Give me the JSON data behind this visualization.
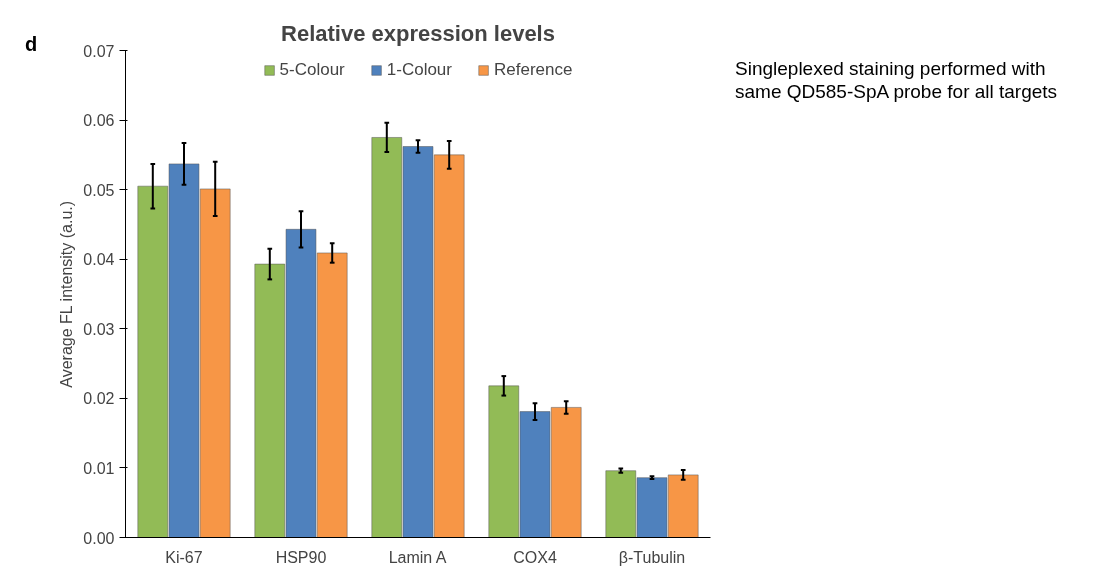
{
  "chart_data": {
    "type": "bar",
    "title": "Relative expression levels",
    "ylabel": "Average FL intensity (a.u.)",
    "categories": [
      "Ki-67",
      "HSP90",
      "Lamin A",
      "COX4",
      "β-Tubulin"
    ],
    "series": [
      {
        "name": "5-Colour",
        "color": "#92bb56",
        "values": [
          0.0505,
          0.0393,
          0.0575,
          0.0218,
          0.0096
        ],
        "errors": [
          0.0032,
          0.0022,
          0.0021,
          0.0014,
          0.0003
        ]
      },
      {
        "name": "1-Colour",
        "color": "#4f81bd",
        "values": [
          0.0537,
          0.0443,
          0.0562,
          0.0181,
          0.0086
        ],
        "errors": [
          0.003,
          0.0026,
          0.0009,
          0.0012,
          0.0002
        ]
      },
      {
        "name": "Reference",
        "color": "#f79646",
        "values": [
          0.0501,
          0.0409,
          0.055,
          0.0187,
          0.009
        ],
        "errors": [
          0.0039,
          0.0014,
          0.002,
          0.0009,
          0.0007
        ]
      }
    ],
    "ylim": [
      0,
      0.07
    ],
    "yticks": [
      {
        "value": 0,
        "label": "0.00"
      },
      {
        "value": 0.01,
        "label": "0.01"
      },
      {
        "value": 0.02,
        "label": "0.02"
      },
      {
        "value": 0.03,
        "label": "0.03"
      },
      {
        "value": 0.04,
        "label": "0.04"
      },
      {
        "value": 0.05,
        "label": "0.05"
      },
      {
        "value": 0.06,
        "label": "0.06"
      },
      {
        "value": 0.07,
        "label": "0.07"
      }
    ],
    "grid": false,
    "legend": "top",
    "annotations": [
      "d",
      "Singleplexed staining performed with\nsame QD585-SpA probe for all targets"
    ]
  }
}
